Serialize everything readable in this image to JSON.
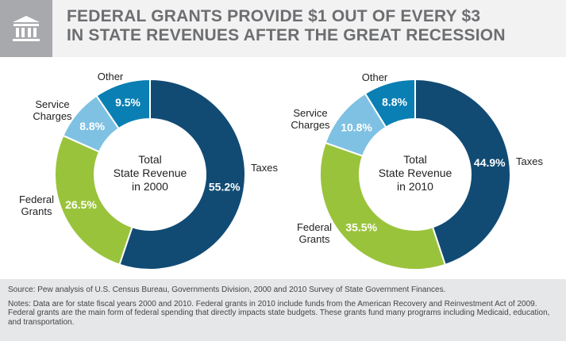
{
  "header": {
    "title_lines": [
      "Federal grants provide $1 out of every $3",
      "in state revenues after the Great Recession"
    ],
    "icon": "government-building-icon"
  },
  "chart_data": [
    {
      "type": "pie",
      "center_lines": [
        "Total",
        "State Revenue",
        "in 2000"
      ],
      "categories": [
        "Taxes",
        "Federal Grants",
        "Service Charges",
        "Other"
      ],
      "category_lines": [
        [
          "Taxes"
        ],
        [
          "Federal",
          "Grants"
        ],
        [
          "Service",
          "Charges"
        ],
        [
          "Other"
        ]
      ],
      "values": [
        55.2,
        26.5,
        8.8,
        9.5
      ],
      "value_labels": [
        "55.2%",
        "26.5%",
        "8.8%",
        "9.5%"
      ]
    },
    {
      "type": "pie",
      "center_lines": [
        "Total",
        "State Revenue",
        "in 2010"
      ],
      "categories": [
        "Taxes",
        "Federal Grants",
        "Service Charges",
        "Other"
      ],
      "category_lines": [
        [
          "Taxes"
        ],
        [
          "Federal",
          "Grants"
        ],
        [
          "Service",
          "Charges"
        ],
        [
          "Other"
        ]
      ],
      "values": [
        44.9,
        35.5,
        10.8,
        8.8
      ],
      "value_labels": [
        "44.9%",
        "35.5%",
        "10.8%",
        "8.8%"
      ]
    }
  ],
  "colors": {
    "Taxes": "#114b74",
    "Federal Grants": "#9ac33c",
    "Service Charges": "#7fc1e2",
    "Other": "#0a7fb4"
  },
  "footer": {
    "source": "Source: Pew analysis of U.S. Census Bureau, Governments Division, 2000 and 2010 Survey of State Government Finances.",
    "notes": "Notes: Data are for state fiscal years 2000 and 2010. Federal grants in 2010 include funds from the American Recovery and Reinvestment Act of 2009. Federal grants are the main form of federal spending that directly impacts state budgets. These grants fund many programs including Medicaid, education, and transportation."
  }
}
